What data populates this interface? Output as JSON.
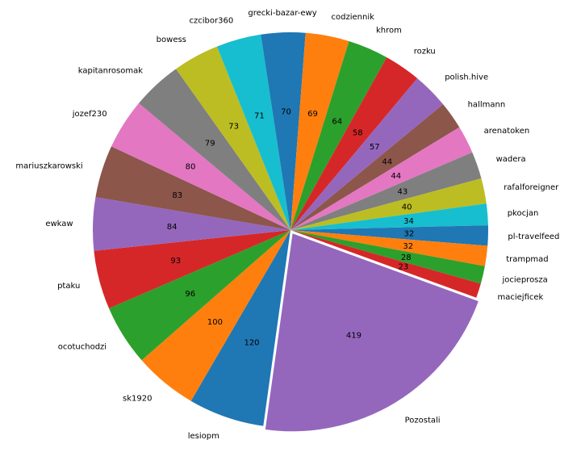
{
  "chart_data": {
    "type": "pie",
    "start_angle_deg": -20,
    "direction": "clockwise-from-right",
    "explode_labels": [
      "Pozostali"
    ],
    "slices": [
      {
        "label": "Pozostali",
        "value": 419,
        "color": "#9467bd"
      },
      {
        "label": "lesiopm",
        "value": 120,
        "color": "#1f77b4"
      },
      {
        "label": "sk1920",
        "value": 100,
        "color": "#ff7f0e"
      },
      {
        "label": "ocotuchodzi",
        "value": 96,
        "color": "#2ca02c"
      },
      {
        "label": "ptaku",
        "value": 93,
        "color": "#d62728"
      },
      {
        "label": "ewkaw",
        "value": 84,
        "color": "#9467bd"
      },
      {
        "label": "mariuszkarowski",
        "value": 83,
        "color": "#8c564b"
      },
      {
        "label": "jozef230",
        "value": 80,
        "color": "#e377c2"
      },
      {
        "label": "kapitanrosomak",
        "value": 79,
        "color": "#7f7f7f"
      },
      {
        "label": "bowess",
        "value": 73,
        "color": "#bcbd22"
      },
      {
        "label": "czcibor360",
        "value": 71,
        "color": "#17becf"
      },
      {
        "label": "grecki-bazar-ewy",
        "value": 70,
        "color": "#1f77b4"
      },
      {
        "label": "codziennik",
        "value": 69,
        "color": "#ff7f0e"
      },
      {
        "label": "khrom",
        "value": 64,
        "color": "#2ca02c"
      },
      {
        "label": "rozku",
        "value": 58,
        "color": "#d62728"
      },
      {
        "label": "polish.hive",
        "value": 57,
        "color": "#9467bd"
      },
      {
        "label": "hallmann",
        "value": 44,
        "color": "#8c564b"
      },
      {
        "label": "arenatoken",
        "value": 44,
        "color": "#e377c2"
      },
      {
        "label": "wadera",
        "value": 43,
        "color": "#7f7f7f"
      },
      {
        "label": "rafalforeigner",
        "value": 40,
        "color": "#bcbd22"
      },
      {
        "label": "pkocjan",
        "value": 34,
        "color": "#17becf"
      },
      {
        "label": "pl-travelfeed",
        "value": 32,
        "color": "#1f77b4"
      },
      {
        "label": "trampmad",
        "value": 32,
        "color": "#ff7f0e"
      },
      {
        "label": "jocieprosza",
        "value": 28,
        "color": "#2ca02c"
      },
      {
        "label": "maciejficek",
        "value": 23,
        "color": "#d62728"
      }
    ]
  }
}
